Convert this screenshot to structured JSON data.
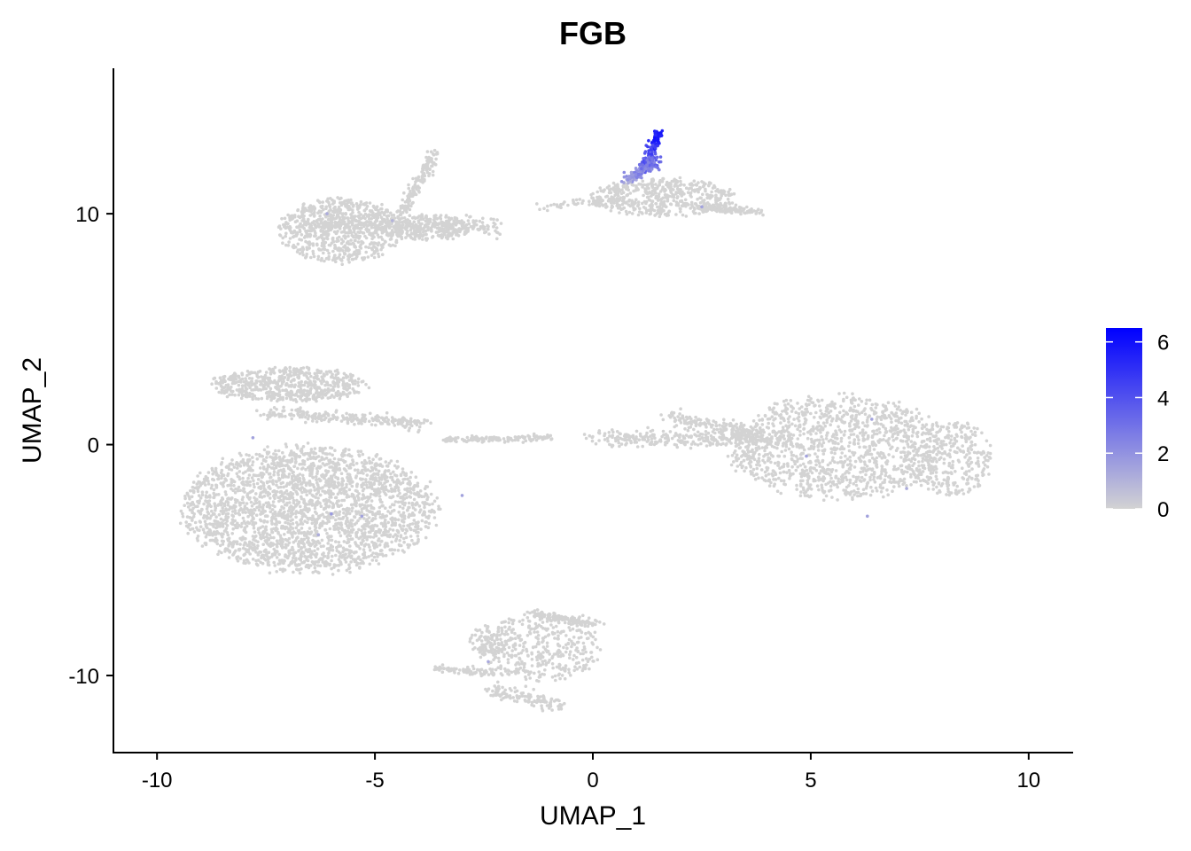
{
  "chart_data": {
    "type": "scatter",
    "title": "FGB",
    "xlabel": "UMAP_1",
    "ylabel": "UMAP_2",
    "xlim": [
      -11,
      11
    ],
    "ylim": [
      -13.3,
      16.3
    ],
    "x_ticks": [
      -10,
      -5,
      0,
      5,
      10
    ],
    "y_ticks": [
      -10,
      0,
      10
    ],
    "x_tick_labels": [
      "-10",
      "-5",
      "0",
      "5",
      "10"
    ],
    "y_tick_labels": [
      "-10",
      "0",
      "10"
    ],
    "grid": false,
    "legend": {
      "placement": "right",
      "type": "colorbar",
      "min": 0,
      "max": 6.5,
      "ticks": [
        0,
        2,
        4,
        6
      ],
      "tick_labels": [
        "0",
        "2",
        "4",
        "6"
      ],
      "low_color": "#d3d3d3",
      "high_color": "#0000ff"
    },
    "colors": {
      "point_base": "#d3d3d3",
      "point_high": "#0000ff"
    },
    "clusters": [
      {
        "name": "",
        "shape": "ellipse",
        "cx": -6.5,
        "cy": -2.8,
        "rx": 3.1,
        "ry": 2.9,
        "n": 2600
      },
      {
        "name": "",
        "shape": "ellipse",
        "cx": -7.0,
        "cy": 2.6,
        "rx": 1.9,
        "ry": 0.8,
        "n": 600
      },
      {
        "name": "",
        "shape": "ellipse",
        "cx": -5.8,
        "cy": 9.3,
        "rx": 1.5,
        "ry": 1.5,
        "n": 700
      },
      {
        "name": "",
        "shape": "ellipse",
        "cx": -3.8,
        "cy": 9.4,
        "rx": 1.1,
        "ry": 0.6,
        "n": 250
      },
      {
        "name": "",
        "shape": "ellipse",
        "cx": 5.6,
        "cy": -0.1,
        "rx": 2.7,
        "ry": 2.4,
        "n": 1300
      },
      {
        "name": "",
        "shape": "ellipse",
        "cx": 8.2,
        "cy": -0.6,
        "rx": 1.0,
        "ry": 1.8,
        "n": 300
      },
      {
        "name": "",
        "shape": "ellipse",
        "cx": 1.6,
        "cy": 10.7,
        "rx": 1.8,
        "ry": 0.9,
        "n": 500
      },
      {
        "name": "",
        "shape": "ellipse",
        "cx": -1.2,
        "cy": -8.8,
        "rx": 1.5,
        "ry": 1.5,
        "n": 400
      },
      {
        "name": "",
        "shape": "ellipse",
        "cx": -2.4,
        "cy": -8.5,
        "rx": 0.5,
        "ry": 0.7,
        "n": 80
      }
    ],
    "streaks": [
      {
        "from": [
          -6.5,
          9.6
        ],
        "to": [
          -2.2,
          9.4
        ],
        "spread": 0.35,
        "n": 350
      },
      {
        "from": [
          -4.4,
          10.0
        ],
        "to": [
          -3.6,
          12.7
        ],
        "spread": 0.15,
        "n": 150
      },
      {
        "from": [
          0.1,
          0.3
        ],
        "to": [
          4.5,
          0.2
        ],
        "spread": 0.35,
        "n": 300
      },
      {
        "from": [
          1.8,
          1.2
        ],
        "to": [
          3.8,
          0.4
        ],
        "spread": 0.3,
        "n": 150
      },
      {
        "from": [
          -1.2,
          10.3
        ],
        "to": [
          0.6,
          10.6
        ],
        "spread": 0.2,
        "n": 60
      },
      {
        "from": [
          2.5,
          10.3
        ],
        "to": [
          3.8,
          10.1
        ],
        "spread": 0.15,
        "n": 120
      },
      {
        "from": [
          -3.4,
          0.2
        ],
        "to": [
          -1.0,
          0.3
        ],
        "spread": 0.12,
        "n": 150
      },
      {
        "from": [
          -7.5,
          1.4
        ],
        "to": [
          -3.8,
          0.9
        ],
        "spread": 0.25,
        "n": 250
      },
      {
        "from": [
          -3.6,
          -9.7
        ],
        "to": [
          -2.2,
          -9.9
        ],
        "spread": 0.15,
        "n": 80
      },
      {
        "from": [
          -2.3,
          -10.6
        ],
        "to": [
          -0.8,
          -11.3
        ],
        "spread": 0.3,
        "n": 120
      },
      {
        "from": [
          -1.5,
          -7.2
        ],
        "to": [
          0.1,
          -7.8
        ],
        "spread": 0.15,
        "n": 120
      }
    ],
    "expressing": [
      {
        "from": [
          1.15,
          11.8
        ],
        "to": [
          1.55,
          13.6
        ],
        "spread": 0.15,
        "n": 160,
        "value_range": [
          2.5,
          6.5
        ]
      },
      {
        "from": [
          0.8,
          11.4
        ],
        "to": [
          1.5,
          12.4
        ],
        "spread": 0.25,
        "n": 120,
        "value_range": [
          1.0,
          4.0
        ]
      }
    ],
    "sparse_highlights": [
      {
        "x": -7.8,
        "y": 0.3,
        "value": 1.5
      },
      {
        "x": -6.0,
        "y": -3.0,
        "value": 1.8
      },
      {
        "x": -5.3,
        "y": -3.1,
        "value": 1.5
      },
      {
        "x": -6.3,
        "y": -3.9,
        "value": 1.2
      },
      {
        "x": -3.0,
        "y": -2.2,
        "value": 1.5
      },
      {
        "x": -6.1,
        "y": 10.0,
        "value": 1.2
      },
      {
        "x": -4.6,
        "y": 9.7,
        "value": 1.0
      },
      {
        "x": 2.5,
        "y": 10.3,
        "value": 1.5
      },
      {
        "x": 6.4,
        "y": 1.1,
        "value": 1.5
      },
      {
        "x": 4.9,
        "y": -0.5,
        "value": 1.5
      },
      {
        "x": 7.2,
        "y": -1.9,
        "value": 1.2
      },
      {
        "x": 6.3,
        "y": -3.1,
        "value": 1.5
      },
      {
        "x": -2.4,
        "y": -9.4,
        "value": 1.3
      }
    ]
  }
}
